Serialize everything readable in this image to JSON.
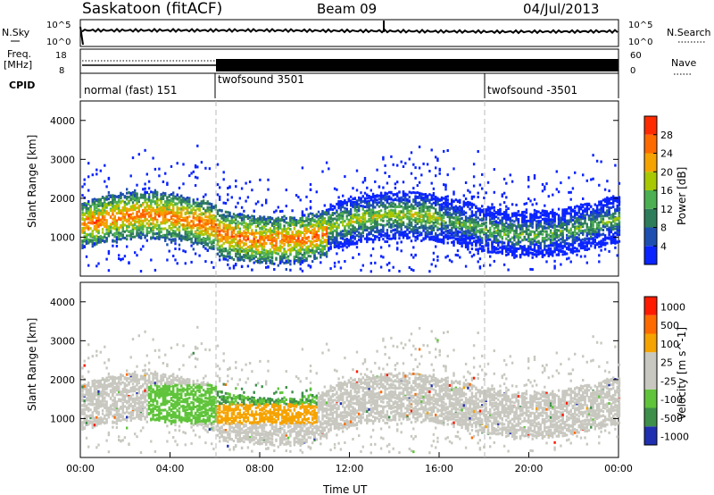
{
  "header": {
    "station": "Saskatoon (fitACF)",
    "beam": "Beam 09",
    "date": "04/Jul/2013"
  },
  "top_panels": {
    "nsky_label": "N.Sky",
    "nsearch_label": "N.Search",
    "freq_label_line1": "Freq.",
    "freq_label_line2": "[MHz]",
    "nave_label": "Nave",
    "cpid_label": "CPID",
    "noise_ticks_left": [
      "10^5",
      "10^0"
    ],
    "noise_ticks_right": [
      "10^5",
      "10^0"
    ],
    "freq_ticks": [
      "18",
      "8"
    ],
    "nave_ticks": [
      "60",
      "0"
    ]
  },
  "cpid_segments": [
    {
      "label": "normal (fast) 151",
      "start_hour": 0
    },
    {
      "label": "twofsound 3501",
      "start_hour": 6
    },
    {
      "label": "twofsound -3501",
      "start_hour": 18
    }
  ],
  "chart_data": [
    {
      "type": "heatmap",
      "panel": "power",
      "ylabel": "Slant Range [km]",
      "xlim": [
        0,
        24
      ],
      "ylim": [
        0,
        4500
      ],
      "yticks": [
        1000,
        2000,
        3000,
        4000
      ],
      "colorbar": {
        "label": "Power [dB]",
        "ticks": [
          "4",
          "8",
          "12",
          "16",
          "20",
          "24",
          "28"
        ],
        "colors": [
          "#0a24ff",
          "#1e4fb0",
          "#2e7d5a",
          "#4caf50",
          "#a8c800",
          "#f5a300",
          "#ff6a00",
          "#ff2a00"
        ]
      }
    },
    {
      "type": "heatmap",
      "panel": "velocity",
      "ylabel": "Slant Range [km]",
      "xlabel": "Time UT",
      "xlim": [
        0,
        24
      ],
      "ylim": [
        0,
        4500
      ],
      "yticks": [
        1000,
        2000,
        3000,
        4000
      ],
      "xticks": [
        "00:00",
        "04:00",
        "08:00",
        "12:00",
        "16:00",
        "20:00",
        "00:00"
      ],
      "colorbar": {
        "label": "Velocity [m s^-1]",
        "ticks": [
          "1000",
          "500",
          "100",
          "25",
          "-25",
          "-100",
          "-500",
          "-1000"
        ],
        "colors": [
          "#1f2fb0",
          "#3d8f4a",
          "#5fc43a",
          "#c8c8c0",
          "#c8c8c0",
          "#f5a300",
          "#ff6a00",
          "#ff1a00"
        ]
      }
    }
  ]
}
